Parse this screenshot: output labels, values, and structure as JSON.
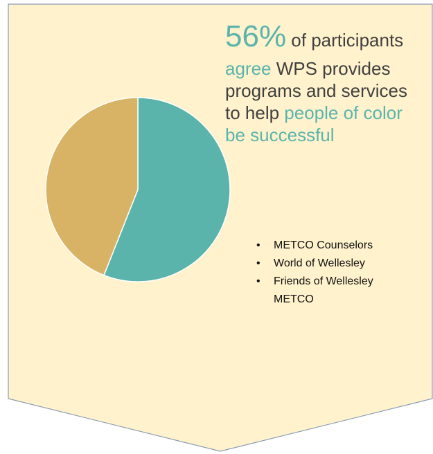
{
  "chart_data": {
    "type": "pie",
    "values": [
      56,
      44
    ],
    "colors": [
      "#5ab4ac",
      "#d8b365"
    ],
    "title_lines": [
      [
        {
          "text": "56%",
          "color": "#5ab4ac",
          "size": "big"
        },
        {
          "text": " of participants",
          "color": "#404040"
        }
      ],
      [
        {
          "text": "agree",
          "color": "#5ab4ac"
        },
        {
          "text": " WPS provides",
          "color": "#404040"
        }
      ],
      [
        {
          "text": "programs and services",
          "color": "#404040"
        }
      ],
      [
        {
          "text": "to help ",
          "color": "#404040"
        },
        {
          "text": "people of color",
          "color": "#5ab4ac"
        }
      ],
      [
        {
          "text": "be successful",
          "color": "#5ab4ac"
        }
      ]
    ],
    "notes": [
      "METCO Counselors",
      "World of Wellesley",
      "Friends of Wellesley METCO"
    ]
  }
}
